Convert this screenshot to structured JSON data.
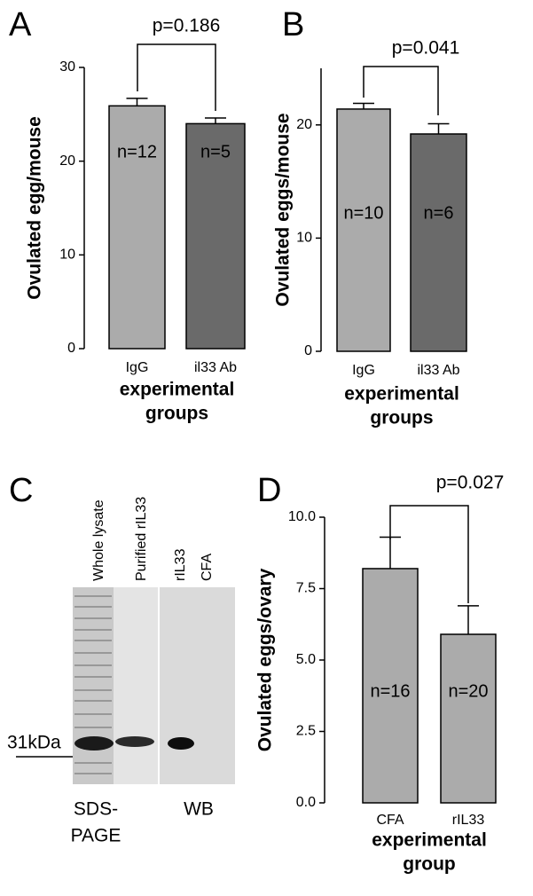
{
  "chart_data": [
    {
      "type": "bar",
      "panel": "A",
      "ylabel": "Ovulated egg/mouse",
      "xlabel": [
        "experimental",
        "groups"
      ],
      "categories": [
        "IgG",
        "il33 Ab"
      ],
      "values": [
        25.9,
        24.0
      ],
      "errors": [
        0.8,
        0.6
      ],
      "colors": [
        "#ababab",
        "#6a6a6a"
      ],
      "n_labels": [
        "n=12",
        "n=5"
      ],
      "p_label": "p=0.186",
      "ylim": [
        0,
        30
      ],
      "yticks": [
        0,
        10,
        20,
        30
      ]
    },
    {
      "type": "bar",
      "panel": "B",
      "ylabel": "Ovulated eggs/mouse",
      "xlabel": [
        "experimental",
        "groups"
      ],
      "categories": [
        "IgG",
        "il33 Ab"
      ],
      "values": [
        21.4,
        19.2
      ],
      "errors": [
        0.5,
        0.9
      ],
      "colors": [
        "#ababab",
        "#6a6a6a"
      ],
      "n_labels": [
        "n=10",
        "n=6"
      ],
      "p_label": "p=0.041",
      "ylim": [
        0,
        25
      ],
      "yticks": [
        0,
        10,
        20
      ]
    },
    {
      "type": "gel",
      "panel": "C",
      "lanes": [
        "Whole lysate",
        "Purified rIL33",
        "rIL33",
        "CFA"
      ],
      "marker": "31kDa",
      "sections": [
        [
          "SDS-",
          "PAGE"
        ],
        [
          "WB"
        ]
      ]
    },
    {
      "type": "bar",
      "panel": "D",
      "ylabel": "Ovulated eggs/ovary",
      "xlabel": [
        "experimental",
        "group"
      ],
      "categories": [
        "CFA",
        "rIL33"
      ],
      "values": [
        8.2,
        5.9
      ],
      "errors": [
        1.1,
        1.0
      ],
      "colors": [
        "#ababab",
        "#ababab"
      ],
      "n_labels": [
        "n=16",
        "n=20"
      ],
      "p_label": "p=0.027",
      "ylim": [
        0,
        10
      ],
      "yticks": [
        {
          "value": 0,
          "label": "0.0"
        },
        {
          "value": 2.5,
          "label": "2.5"
        },
        {
          "value": 5,
          "label": "5.0"
        },
        {
          "value": 7.5,
          "label": "7.5"
        },
        {
          "value": 10,
          "label": "10.0"
        }
      ]
    }
  ]
}
